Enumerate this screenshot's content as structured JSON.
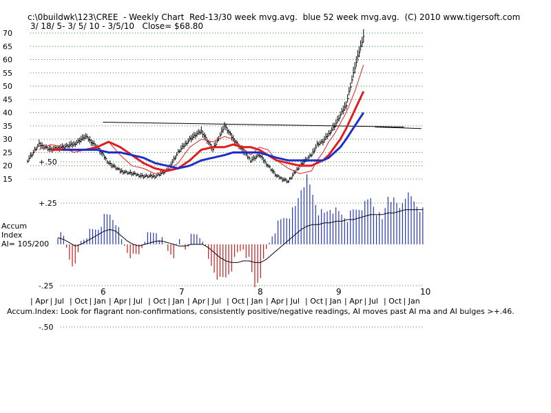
{
  "header": {
    "title_line1": "c:\\0buildwk\\123\\CREE  - Weekly Chart  Red-13/30 week mvg.avg.  blue 52 week mvg.avg.  (C) 2010 www.tigersoft.com",
    "title_line2": " 3/ 18/ 5- 3/ 5/ 10 - 3/5/10   Close= $68.80"
  },
  "accum_panel": {
    "label_line1": "Accum",
    "label_line2": "Index",
    "label_line3": "AI= 105/200"
  },
  "footer_note": "Accum.Index: Look for flagrant non-confirmations, consistently positive/negative readings, AI moves past AI ma and AI bulges >+.46.",
  "colors": {
    "price": "#000000",
    "ma_red": "#e31b1b",
    "ma_blue": "#1c2ecc",
    "accum_pos": "#2233bb",
    "accum_neg": "#c01a1a",
    "grid": "#2a8a2a"
  },
  "chart_data": [
    {
      "type": "line",
      "title": "c:\\0buildwk\\123\\CREE  - Weekly Chart  Red-13/30 week mvg.avg.  blue 52 week mvg.avg.  (C) 2010 www.tigersoft.com",
      "subtitle": " 3/ 18/ 5- 3/ 5/ 10 - 3/5/10   Close= $68.80",
      "xlabel": "",
      "ylabel": "",
      "ylim": [
        15,
        70
      ],
      "y_ticks": [
        "70",
        "65",
        "60",
        "55",
        "50",
        "45",
        "40",
        "35",
        "30",
        "25",
        "20",
        "15"
      ],
      "year_ticks": [
        "6",
        "7",
        "8",
        "9",
        "10"
      ],
      "month_ticks": [
        "| Apr",
        "| Jul",
        "| Oct",
        "| Jan",
        "| Apr",
        "| Jul",
        "| Oct",
        "| Jan",
        "| Apr",
        "| Jul",
        "| Oct",
        "| Jan",
        "| Apr",
        "| Jul",
        "| Oct",
        "| Jan",
        "| Apr",
        "| Jul",
        "| Oct",
        "| Jan"
      ],
      "grid": true,
      "x_week_index": [
        0,
        8,
        16,
        24,
        32,
        40,
        48,
        56,
        64,
        72,
        80,
        88,
        96,
        104,
        112,
        120,
        128,
        136,
        142,
        148,
        154,
        160,
        166,
        172,
        180,
        188,
        196,
        200,
        204,
        208,
        212,
        216,
        220,
        226,
        232,
        238,
        244,
        250,
        256,
        262
      ],
      "series": [
        {
          "name": "Red-13 week mvg.avg.",
          "values": [
            null,
            26,
            28,
            27,
            25,
            26,
            27,
            29,
            24,
            20,
            19,
            17,
            18,
            21,
            27,
            30,
            29,
            31,
            30,
            27,
            24,
            27,
            26,
            22,
            19,
            17,
            18,
            22,
            25,
            29,
            32,
            36,
            40,
            48,
            58,
            null,
            null,
            null,
            null,
            null
          ]
        },
        {
          "name": "Red-30 week mvg.avg.",
          "values": [
            null,
            null,
            26,
            26,
            26,
            26,
            27,
            29,
            27,
            24,
            21,
            19,
            18,
            19,
            22,
            26,
            27,
            27,
            28,
            27,
            27,
            26,
            24,
            22,
            21,
            20,
            20,
            21,
            22,
            24,
            27,
            30,
            34,
            41,
            48,
            null,
            null,
            null,
            null,
            null
          ]
        },
        {
          "name": "blue 52 week mvg.avg.",
          "values": [
            null,
            null,
            null,
            26,
            26,
            26,
            26,
            25,
            25,
            24,
            23,
            21,
            20,
            19,
            20,
            22,
            23,
            24,
            25,
            25,
            25,
            25,
            24,
            23,
            22,
            22,
            22,
            22,
            22,
            23,
            25,
            27,
            30,
            35,
            40,
            null,
            null,
            null,
            null,
            null
          ]
        },
        {
          "name": "Close",
          "values": [
            22,
            28,
            26,
            27,
            28,
            31,
            27,
            21,
            18,
            17,
            16,
            16,
            18,
            25,
            30,
            33,
            26,
            35,
            30,
            26,
            22,
            24,
            20,
            16,
            14,
            20,
            24,
            28,
            29,
            32,
            35,
            39,
            43,
            57,
            68.8,
            null,
            null,
            null,
            null,
            null
          ]
        }
      ],
      "annotations": [
        {
          "type": "resistance-line",
          "from": {
            "x_week": 52,
            "y": 36.4
          },
          "to": {
            "x_week": 260,
            "y": 34.6
          }
        },
        {
          "type": "resistance-line",
          "from": {
            "x_week": 240,
            "y": 34.6
          },
          "to": {
            "x_week": 272,
            "y": 34.0
          }
        }
      ]
    },
    {
      "type": "bar",
      "title": "Accum Index",
      "subtitle": "AI= 105/200",
      "ylim": [
        -0.5,
        0.5
      ],
      "y_ticks": [
        "+.50",
        "+.25",
        "-.25",
        "-.50"
      ],
      "grid": true,
      "x_week_index": [
        0,
        4,
        8,
        12,
        16,
        20,
        24,
        28,
        32,
        36,
        40,
        44,
        48,
        52,
        56,
        60,
        64,
        68,
        72,
        76,
        80,
        84,
        88,
        92,
        96,
        100,
        104,
        108,
        112,
        116,
        120,
        124,
        128,
        132,
        136,
        140,
        144,
        148,
        152,
        156,
        160,
        164,
        168,
        172,
        176,
        180,
        184,
        188,
        192,
        196,
        200,
        204,
        208,
        212,
        216,
        220,
        224,
        228,
        232,
        236,
        240,
        244,
        248,
        252,
        256,
        260,
        264,
        268,
        272
      ],
      "series": [
        {
          "name": "Accum Index",
          "values": [
            0.06,
            0.04,
            -0.08,
            -0.14,
            0.02,
            0.06,
            0.08,
            0.1,
            0.16,
            0.18,
            0.14,
            0.02,
            -0.04,
            -0.08,
            -0.06,
            0.04,
            0.06,
            0.08,
            0.02,
            -0.04,
            -0.06,
            0.02,
            -0.02,
            0.04,
            0.06,
            0.04,
            -0.1,
            -0.16,
            -0.22,
            -0.2,
            -0.14,
            -0.06,
            -0.02,
            -0.1,
            -0.26,
            -0.18,
            -0.04,
            0.06,
            0.12,
            0.16,
            0.18,
            0.22,
            0.34,
            0.4,
            0.3,
            0.2,
            0.18,
            0.22,
            0.2,
            0.18,
            0.16,
            0.2,
            0.22,
            0.24,
            0.28,
            0.2,
            0.14,
            0.3,
            0.26,
            0.22,
            0.3,
            0.28,
            0.24,
            0.2,
            0.22,
            0.3,
            0.26,
            0.3,
            null
          ]
        },
        {
          "name": "AI ma",
          "values": [
            0.04,
            0.03,
            0.01,
            -0.01,
            0.0,
            0.02,
            0.04,
            0.06,
            0.08,
            0.09,
            0.08,
            0.05,
            0.02,
            0.0,
            -0.01,
            0.0,
            0.01,
            0.02,
            0.02,
            0.01,
            0.0,
            -0.01,
            -0.01,
            0.0,
            0.0,
            0.0,
            -0.02,
            -0.05,
            -0.08,
            -0.1,
            -0.11,
            -0.11,
            -0.1,
            -0.1,
            -0.11,
            -0.11,
            -0.09,
            -0.06,
            -0.03,
            0.0,
            0.03,
            0.06,
            0.09,
            0.11,
            0.12,
            0.12,
            0.13,
            0.13,
            0.14,
            0.14,
            0.15,
            0.15,
            0.16,
            0.17,
            0.18,
            0.18,
            0.18,
            0.19,
            0.19,
            0.2,
            0.21,
            0.21,
            0.21,
            0.21,
            0.21,
            0.22,
            0.22,
            0.23,
            null
          ]
        }
      ]
    }
  ]
}
